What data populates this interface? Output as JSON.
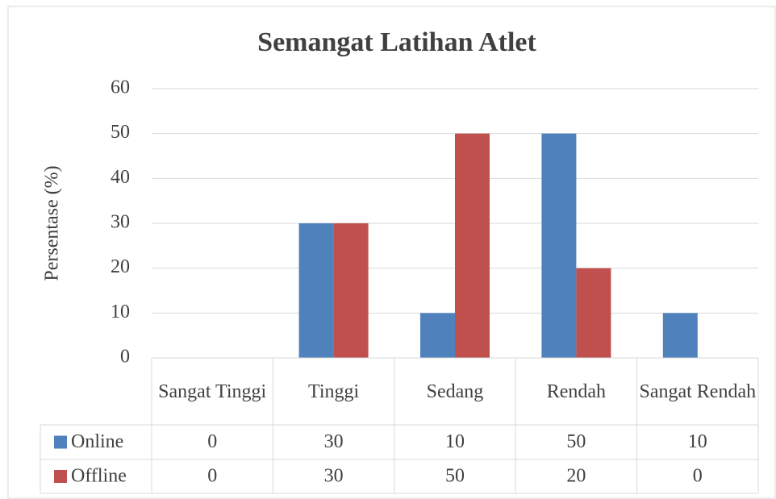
{
  "chart_data": {
    "type": "bar",
    "title": "Semangat Latihan Atlet",
    "y_label": "Persentase (%)",
    "categories": [
      "Sangat Tinggi",
      "Tinggi",
      "Sedang",
      "Rendah",
      "Sangat Rendah"
    ],
    "series": [
      {
        "name": "Online",
        "color": "#4f81bd",
        "values": [
          0,
          30,
          10,
          50,
          10
        ]
      },
      {
        "name": "Offline",
        "color": "#c0504d",
        "values": [
          0,
          30,
          50,
          20,
          0
        ]
      }
    ],
    "ylim": [
      0,
      60
    ],
    "yticks": [
      0,
      10,
      20,
      30,
      40,
      50,
      60
    ],
    "grid": true,
    "data_table": true
  }
}
